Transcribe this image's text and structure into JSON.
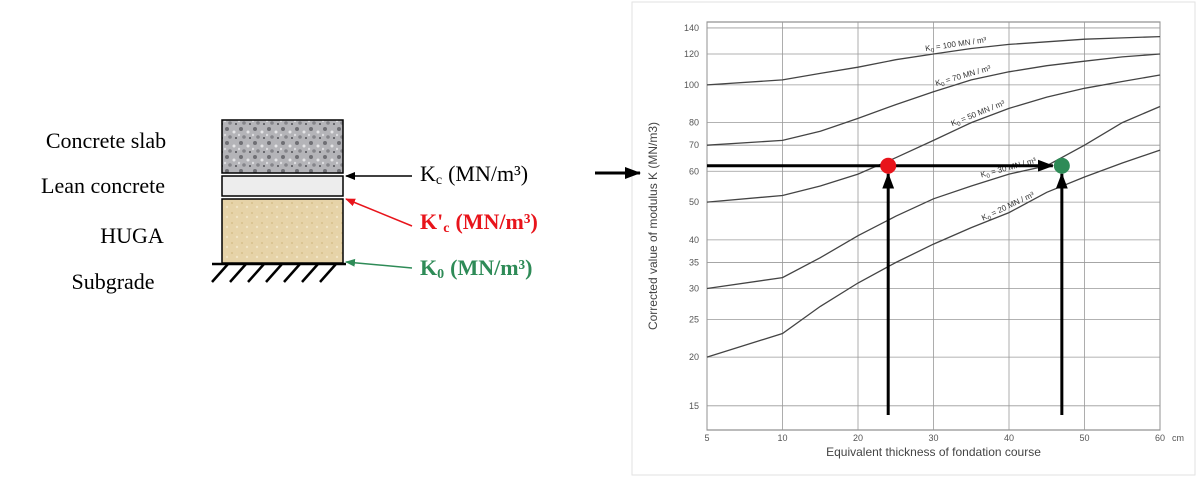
{
  "layers": {
    "items": [
      "Concrete slab",
      "Lean concrete",
      "HUGA",
      "Subgrade"
    ]
  },
  "moduli": [
    {
      "symbol": "K",
      "subscript": "c",
      "unit": "(MN/m³)"
    },
    {
      "symbol": "K'",
      "subscript": "c",
      "unit": "(MN/m³)"
    },
    {
      "symbol": "K",
      "subscript": "0",
      "unit": "(MN/m³)"
    }
  ],
  "chart_data": {
    "type": "line",
    "xlabel": "Equivalent thickness of fondation course",
    "ylabel": "Corrected value of modulus K (MN/m3)",
    "x": [
      5,
      10,
      15,
      20,
      25,
      30,
      35,
      40,
      45,
      50,
      55,
      60
    ],
    "xlim": [
      5,
      60
    ],
    "xticks": [
      5,
      10,
      20,
      30,
      40,
      50,
      60
    ],
    "x_unit": "cm",
    "yscale": "log",
    "ylim": [
      13,
      145
    ],
    "yticks": [
      15,
      20,
      25,
      30,
      35,
      40,
      50,
      60,
      70,
      80,
      100,
      120,
      140
    ],
    "grid": true,
    "series": [
      {
        "symbol": "K",
        "subscript": "0",
        "name": "= 100 MN / m³",
        "color": "#444444",
        "values": [
          100,
          103,
          107,
          111,
          116,
          120,
          124,
          127,
          129,
          131,
          132,
          133
        ]
      },
      {
        "symbol": "K",
        "subscript": "0",
        "name": "= 70 MN / m³",
        "color": "#444444",
        "values": [
          70,
          72,
          76,
          82,
          89,
          96,
          103,
          108,
          112,
          115,
          118,
          120
        ]
      },
      {
        "symbol": "K",
        "subscript": "0",
        "name": "= 50 MN / m³",
        "color": "#444444",
        "values": [
          50,
          52,
          55,
          59,
          65,
          72,
          80,
          87,
          93,
          98,
          102,
          106
        ]
      },
      {
        "symbol": "K",
        "subscript": "0",
        "name": "= 30 MN / m³",
        "color": "#444444",
        "values": [
          30,
          32,
          36,
          41,
          46,
          51,
          55,
          59,
          62,
          70,
          80,
          88
        ]
      },
      {
        "symbol": "K",
        "subscript": "0",
        "name": "= 20 MN / m³",
        "color": "#444444",
        "values": [
          20,
          23,
          27,
          31,
          35,
          39,
          43,
          47,
          53,
          58,
          63,
          68
        ]
      }
    ],
    "points": [
      {
        "x": 24,
        "y": 62,
        "color": "#e8141b"
      },
      {
        "x": 47,
        "y": 62,
        "color": "#2e8b57"
      }
    ]
  }
}
